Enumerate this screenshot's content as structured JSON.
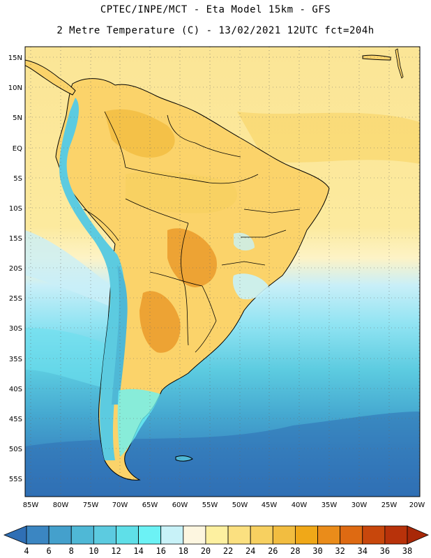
{
  "title": {
    "line1": "CPTEC/INPE/MCT -  Eta Model 15km - GFS",
    "line2": "2 Metre Temperature (C) - 13/02/2021 12UTC fct=204h"
  },
  "map": {
    "region": "South America",
    "variable": "2 Metre Temperature",
    "units": "C",
    "lat_labels": [
      "15N",
      "10N",
      "5N",
      "EQ",
      "5S",
      "10S",
      "15S",
      "20S",
      "25S",
      "30S",
      "35S",
      "40S",
      "45S",
      "50S",
      "55S"
    ],
    "lon_labels": [
      "85W",
      "80W",
      "75W",
      "70W",
      "65W",
      "60W",
      "55W",
      "50W",
      "45W",
      "40W",
      "35W",
      "30W",
      "25W",
      "20W"
    ]
  },
  "colorbar": {
    "labels": [
      "4",
      "6",
      "8",
      "10",
      "12",
      "14",
      "16",
      "18",
      "20",
      "22",
      "24",
      "26",
      "28",
      "30",
      "32",
      "34",
      "36",
      "38"
    ],
    "colors": [
      "#2f6fb5",
      "#3b86c2",
      "#44a0cc",
      "#4fb8d6",
      "#5ccbe0",
      "#5fdfe8",
      "#6cf2f5",
      "#c8f2f8",
      "#fdf6e0",
      "#fdf0a0",
      "#fbe080",
      "#f7d060",
      "#f2bd40",
      "#f0a818",
      "#ea8c1a",
      "#de6a12",
      "#c8470c",
      "#b8320a",
      "#a82808"
    ]
  }
}
